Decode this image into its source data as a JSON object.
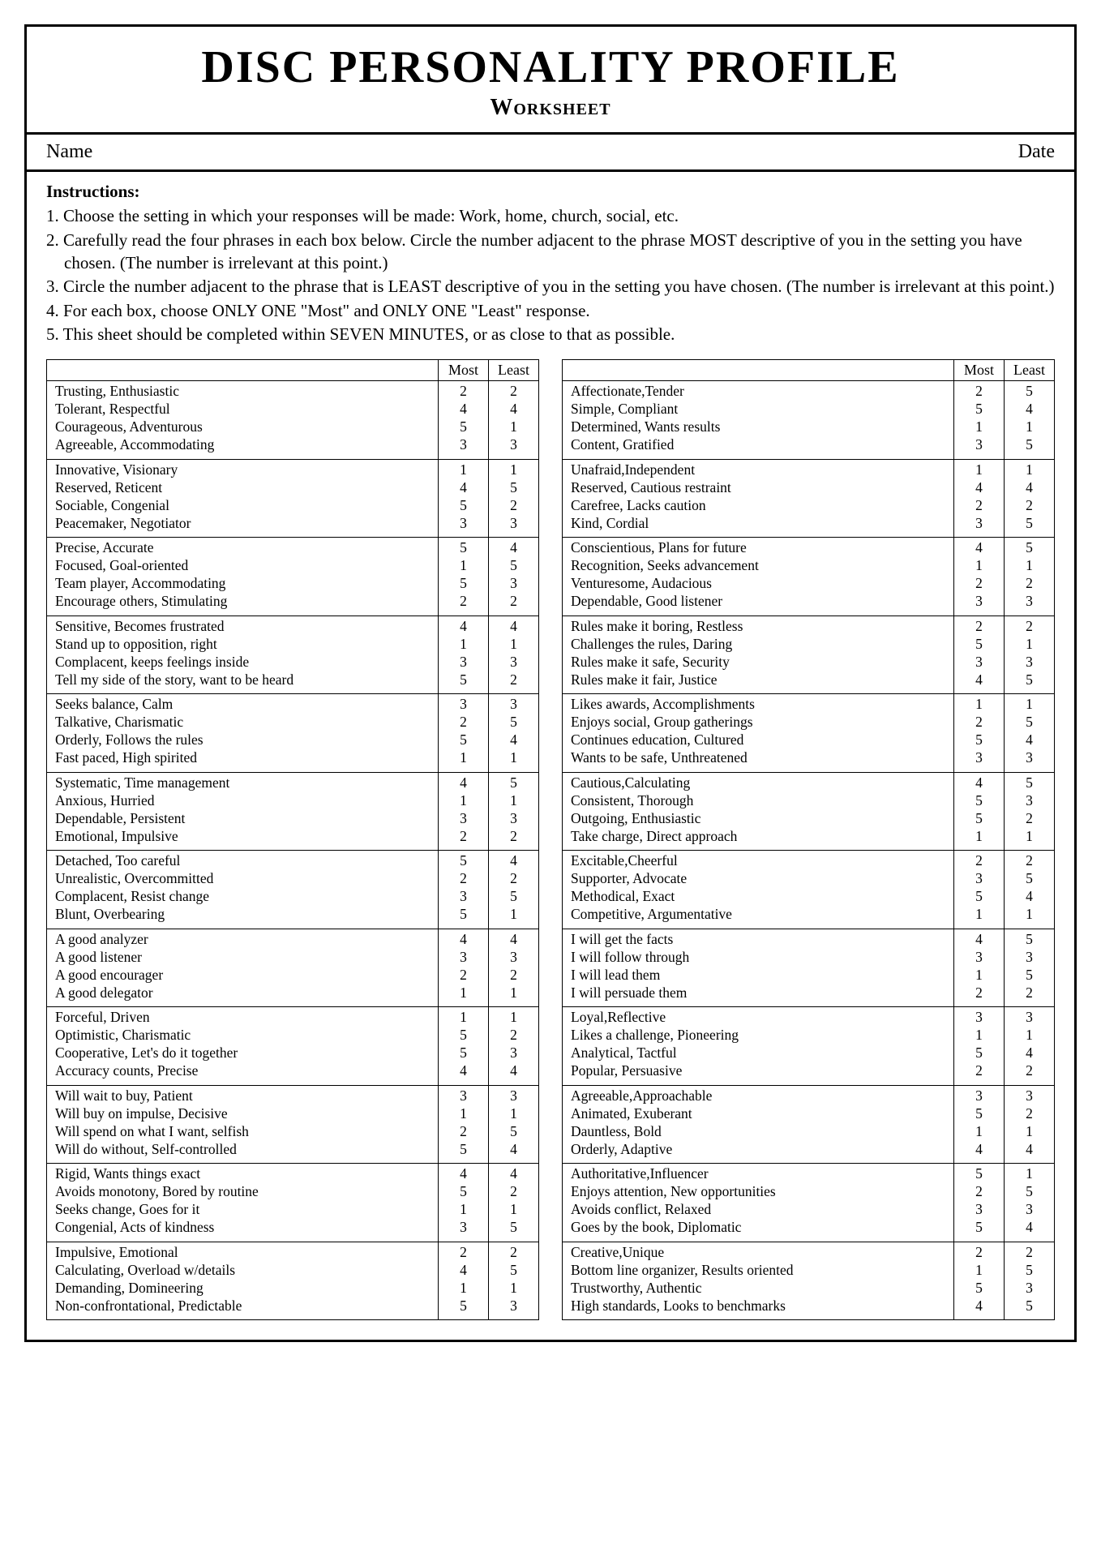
{
  "title": "DISC PERSONALITY PROFILE",
  "subtitle": "Worksheet",
  "name_label": "Name",
  "date_label": "Date",
  "instructions_heading": "Instructions:",
  "instructions": [
    "1. Choose the setting in which your responses will be made: Work, home, church, social, etc.",
    "2. Carefully read the four phrases in each box below. Circle the number adjacent to the phrase MOST descriptive of you in the setting you have chosen. (The number is irrelevant at this point.)",
    "3. Circle the number adjacent to the phrase that is LEAST descriptive of you in the setting you have chosen. (The number is irrelevant at this point.)",
    "4. For each box, choose ONLY ONE \"Most\" and ONLY ONE \"Least\" response.",
    "5. This sheet should be completed within SEVEN MINUTES, or as close to that as possible."
  ],
  "col_headers": {
    "most": "Most",
    "least": "Least"
  },
  "left": [
    [
      {
        "phrase": "Trusting, Enthusiastic",
        "most": "2",
        "least": "2"
      },
      {
        "phrase": "Tolerant, Respectful",
        "most": "4",
        "least": "4"
      },
      {
        "phrase": "Courageous, Adventurous",
        "most": "5",
        "least": "1"
      },
      {
        "phrase": "Agreeable, Accommodating",
        "most": "3",
        "least": "3"
      }
    ],
    [
      {
        "phrase": "Innovative, Visionary",
        "most": "1",
        "least": "1"
      },
      {
        "phrase": "Reserved, Reticent",
        "most": "4",
        "least": "5"
      },
      {
        "phrase": "Sociable, Congenial",
        "most": "5",
        "least": "2"
      },
      {
        "phrase": "Peacemaker, Negotiator",
        "most": "3",
        "least": "3"
      }
    ],
    [
      {
        "phrase": "Precise, Accurate",
        "most": "5",
        "least": "4"
      },
      {
        "phrase": "Focused, Goal-oriented",
        "most": "1",
        "least": "5"
      },
      {
        "phrase": "Team player, Accommodating",
        "most": "5",
        "least": "3"
      },
      {
        "phrase": "Encourage others, Stimulating",
        "most": "2",
        "least": "2"
      }
    ],
    [
      {
        "phrase": "Sensitive, Becomes frustrated",
        "most": "4",
        "least": "4"
      },
      {
        "phrase": "Stand up to opposition, right",
        "most": "1",
        "least": "1"
      },
      {
        "phrase": "Complacent, keeps feelings inside",
        "most": "3",
        "least": "3"
      },
      {
        "phrase": "Tell my side of the story, want to be heard",
        "most": "5",
        "least": "2"
      }
    ],
    [
      {
        "phrase": "Seeks balance, Calm",
        "most": "3",
        "least": "3"
      },
      {
        "phrase": "Talkative, Charismatic",
        "most": "2",
        "least": "5"
      },
      {
        "phrase": "Orderly, Follows the rules",
        "most": "5",
        "least": "4"
      },
      {
        "phrase": "Fast paced, High spirited",
        "most": "1",
        "least": "1"
      }
    ],
    [
      {
        "phrase": "Systematic, Time management",
        "most": "4",
        "least": "5"
      },
      {
        "phrase": "Anxious, Hurried",
        "most": "1",
        "least": "1"
      },
      {
        "phrase": "Dependable, Persistent",
        "most": "3",
        "least": "3"
      },
      {
        "phrase": "Emotional, Impulsive",
        "most": "2",
        "least": "2"
      }
    ],
    [
      {
        "phrase": "Detached, Too careful",
        "most": "5",
        "least": "4"
      },
      {
        "phrase": "Unrealistic, Overcommitted",
        "most": "2",
        "least": "2"
      },
      {
        "phrase": "Complacent, Resist change",
        "most": "3",
        "least": "5"
      },
      {
        "phrase": "Blunt, Overbearing",
        "most": "5",
        "least": "1"
      }
    ],
    [
      {
        "phrase": "A good analyzer",
        "most": "4",
        "least": "4"
      },
      {
        "phrase": "A good listener",
        "most": "3",
        "least": "3"
      },
      {
        "phrase": "A good encourager",
        "most": "2",
        "least": "2"
      },
      {
        "phrase": "A good delegator",
        "most": "1",
        "least": "1"
      }
    ],
    [
      {
        "phrase": "Forceful, Driven",
        "most": "1",
        "least": "1"
      },
      {
        "phrase": "Optimistic, Charismatic",
        "most": "5",
        "least": "2"
      },
      {
        "phrase": "Cooperative, Let's do it together",
        "most": "5",
        "least": "3"
      },
      {
        "phrase": "Accuracy counts, Precise",
        "most": "4",
        "least": "4"
      }
    ],
    [
      {
        "phrase": "Will wait to buy, Patient",
        "most": "3",
        "least": "3"
      },
      {
        "phrase": "Will buy on impulse, Decisive",
        "most": "1",
        "least": "1"
      },
      {
        "phrase": "Will spend on what I want, selfish",
        "most": "2",
        "least": "5"
      },
      {
        "phrase": "Will do without, Self-controlled",
        "most": "5",
        "least": "4"
      }
    ],
    [
      {
        "phrase": "Rigid, Wants things exact",
        "most": "4",
        "least": "4"
      },
      {
        "phrase": "Avoids monotony, Bored by routine",
        "most": "5",
        "least": "2"
      },
      {
        "phrase": "Seeks change, Goes for it",
        "most": "1",
        "least": "1"
      },
      {
        "phrase": "Congenial, Acts of kindness",
        "most": "3",
        "least": "5"
      }
    ],
    [
      {
        "phrase": "Impulsive, Emotional",
        "most": "2",
        "least": "2"
      },
      {
        "phrase": "Calculating, Overload w/details",
        "most": "4",
        "least": "5"
      },
      {
        "phrase": "Demanding, Domineering",
        "most": "1",
        "least": "1"
      },
      {
        "phrase": "Non-confrontational, Predictable",
        "most": "5",
        "least": "3"
      }
    ]
  ],
  "right": [
    [
      {
        "phrase": "Affectionate,Tender",
        "most": "2",
        "least": "5"
      },
      {
        "phrase": "Simple, Compliant",
        "most": "5",
        "least": "4"
      },
      {
        "phrase": "Determined, Wants results",
        "most": "1",
        "least": "1"
      },
      {
        "phrase": "Content, Gratified",
        "most": "3",
        "least": "5"
      }
    ],
    [
      {
        "phrase": "Unafraid,Independent",
        "most": "1",
        "least": "1"
      },
      {
        "phrase": "Reserved, Cautious restraint",
        "most": "4",
        "least": "4"
      },
      {
        "phrase": "Carefree, Lacks caution",
        "most": "2",
        "least": "2"
      },
      {
        "phrase": "Kind, Cordial",
        "most": "3",
        "least": "5"
      }
    ],
    [
      {
        "phrase": "Conscientious, Plans for future",
        "most": "4",
        "least": "5"
      },
      {
        "phrase": "Recognition, Seeks advancement",
        "most": "1",
        "least": "1"
      },
      {
        "phrase": "Venturesome, Audacious",
        "most": "2",
        "least": "2"
      },
      {
        "phrase": "Dependable, Good listener",
        "most": "3",
        "least": "3"
      }
    ],
    [
      {
        "phrase": "Rules make it boring, Restless",
        "most": "2",
        "least": "2"
      },
      {
        "phrase": "Challenges the rules, Daring",
        "most": "5",
        "least": "1"
      },
      {
        "phrase": "Rules make it safe, Security",
        "most": "3",
        "least": "3"
      },
      {
        "phrase": "Rules make it fair, Justice",
        "most": "4",
        "least": "5"
      }
    ],
    [
      {
        "phrase": "Likes awards, Accomplishments",
        "most": "1",
        "least": "1"
      },
      {
        "phrase": "Enjoys social, Group gatherings",
        "most": "2",
        "least": "5"
      },
      {
        "phrase": "Continues education, Cultured",
        "most": "5",
        "least": "4"
      },
      {
        "phrase": "Wants to be safe, Unthreatened",
        "most": "3",
        "least": "3"
      }
    ],
    [
      {
        "phrase": "Cautious,Calculating",
        "most": "4",
        "least": "5"
      },
      {
        "phrase": "Consistent, Thorough",
        "most": "5",
        "least": "3"
      },
      {
        "phrase": "Outgoing, Enthusiastic",
        "most": "5",
        "least": "2"
      },
      {
        "phrase": "Take charge, Direct approach",
        "most": "1",
        "least": "1"
      }
    ],
    [
      {
        "phrase": "Excitable,Cheerful",
        "most": "2",
        "least": "2"
      },
      {
        "phrase": "Supporter, Advocate",
        "most": "3",
        "least": "5"
      },
      {
        "phrase": "Methodical, Exact",
        "most": "5",
        "least": "4"
      },
      {
        "phrase": "Competitive, Argumentative",
        "most": "1",
        "least": "1"
      }
    ],
    [
      {
        "phrase": "I will get the facts",
        "most": "4",
        "least": "5"
      },
      {
        "phrase": "I will follow through",
        "most": "3",
        "least": "3"
      },
      {
        "phrase": "I will lead them",
        "most": "1",
        "least": "5"
      },
      {
        "phrase": "I will persuade them",
        "most": "2",
        "least": "2"
      }
    ],
    [
      {
        "phrase": "Loyal,Reflective",
        "most": "3",
        "least": "3"
      },
      {
        "phrase": "Likes a challenge, Pioneering",
        "most": "1",
        "least": "1"
      },
      {
        "phrase": "Analytical, Tactful",
        "most": "5",
        "least": "4"
      },
      {
        "phrase": "Popular, Persuasive",
        "most": "2",
        "least": "2"
      }
    ],
    [
      {
        "phrase": "Agreeable,Approachable",
        "most": "3",
        "least": "3"
      },
      {
        "phrase": "Animated, Exuberant",
        "most": "5",
        "least": "2"
      },
      {
        "phrase": "Dauntless, Bold",
        "most": "1",
        "least": "1"
      },
      {
        "phrase": "Orderly, Adaptive",
        "most": "4",
        "least": "4"
      }
    ],
    [
      {
        "phrase": "Authoritative,Influencer",
        "most": "5",
        "least": "1"
      },
      {
        "phrase": "Enjoys attention, New opportunities",
        "most": "2",
        "least": "5"
      },
      {
        "phrase": "Avoids conflict, Relaxed",
        "most": "3",
        "least": "3"
      },
      {
        "phrase": "Goes by the book, Diplomatic",
        "most": "5",
        "least": "4"
      }
    ],
    [
      {
        "phrase": "Creative,Unique",
        "most": "2",
        "least": "2"
      },
      {
        "phrase": "Bottom line organizer, Results oriented",
        "most": "1",
        "least": "5"
      },
      {
        "phrase": "Trustworthy, Authentic",
        "most": "5",
        "least": "3"
      },
      {
        "phrase": "High standards, Looks to benchmarks",
        "most": "4",
        "least": "5"
      }
    ]
  ]
}
